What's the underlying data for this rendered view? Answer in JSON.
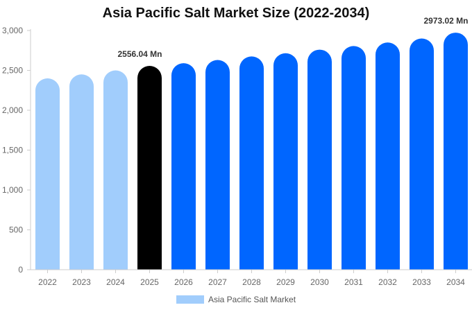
{
  "colors": {
    "historical": "#a1cdfc",
    "base_year": "#000000",
    "forecast": "#0066ff",
    "axis": "#cccccc",
    "tick_text": "#666666"
  },
  "chart_data": {
    "type": "bar",
    "title": "Asia Pacific Salt Market Size (2022-2034)",
    "xlabel": "",
    "ylabel": "",
    "ylim": [
      0,
      3000
    ],
    "y_ticks": [
      "0",
      "500",
      "1,000",
      "1,500",
      "2,000",
      "2,500",
      "3,000"
    ],
    "grid": false,
    "legend_position": "bottom",
    "categories": [
      "2022",
      "2023",
      "2024",
      "2025",
      "2026",
      "2027",
      "2028",
      "2029",
      "2030",
      "2031",
      "2032",
      "2033",
      "2034"
    ],
    "series": [
      {
        "name": "Asia Pacific Salt Market",
        "values": [
          2400,
          2450,
          2500,
          2556.04,
          2590,
          2630,
          2675,
          2715,
          2760,
          2805,
          2850,
          2900,
          2973.02
        ],
        "segments": [
          "historical",
          "historical",
          "historical",
          "base_year",
          "forecast",
          "forecast",
          "forecast",
          "forecast",
          "forecast",
          "forecast",
          "forecast",
          "forecast",
          "forecast"
        ]
      }
    ],
    "data_labels": [
      {
        "category": "2025",
        "text": "2556.04 Mn"
      },
      {
        "category": "2034",
        "text": "2973.02 Mn"
      }
    ]
  }
}
